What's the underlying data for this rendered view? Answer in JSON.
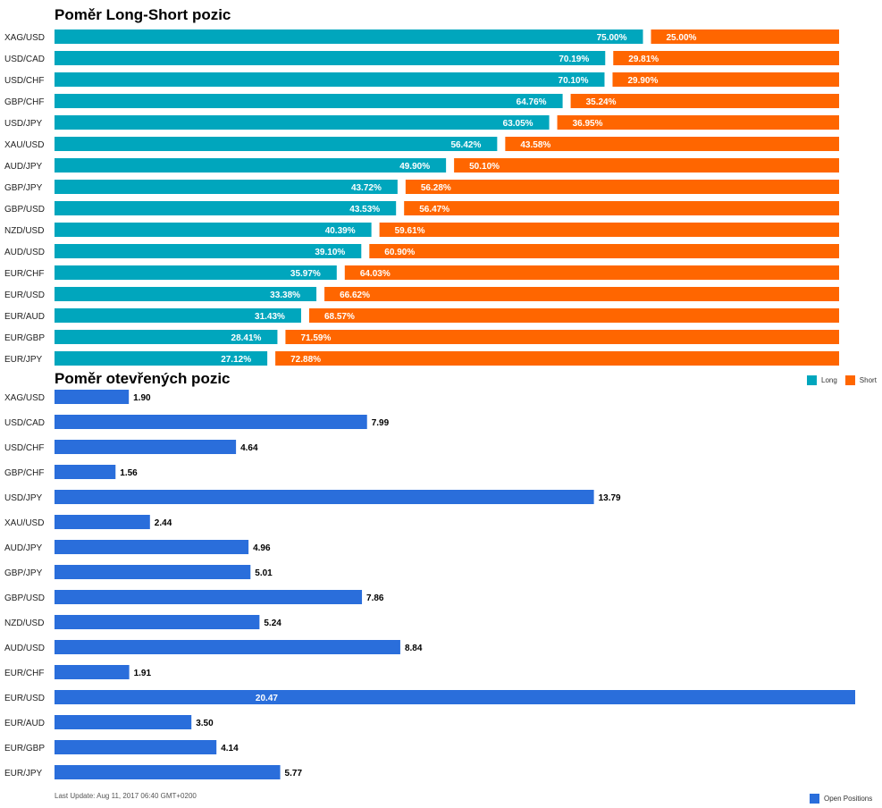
{
  "chart_data": [
    {
      "type": "bar",
      "stacked": true,
      "orientation": "horizontal",
      "title": "Poměr Long-Short pozic",
      "categories": [
        "XAG/USD",
        "USD/CAD",
        "USD/CHF",
        "GBP/CHF",
        "USD/JPY",
        "XAU/USD",
        "AUD/JPY",
        "GBP/JPY",
        "GBP/USD",
        "NZD/USD",
        "AUD/USD",
        "EUR/CHF",
        "EUR/USD",
        "EUR/AUD",
        "EUR/GBP",
        "EUR/JPY"
      ],
      "series": [
        {
          "name": "Long",
          "color": "#00a6bd",
          "values": [
            75.0,
            70.19,
            70.1,
            64.76,
            63.05,
            56.42,
            49.9,
            43.72,
            43.53,
            40.39,
            39.1,
            35.97,
            33.38,
            31.43,
            28.41,
            27.12
          ]
        },
        {
          "name": "Short",
          "color": "#ff6600",
          "values": [
            25.0,
            29.81,
            29.9,
            35.24,
            36.95,
            43.58,
            50.1,
            56.28,
            56.47,
            59.61,
            60.9,
            64.03,
            66.62,
            68.57,
            71.59,
            72.88
          ]
        }
      ],
      "value_suffix": "%",
      "xlim": [
        0,
        100
      ],
      "legend": {
        "position": "right",
        "labels": [
          "Long",
          "Short"
        ]
      }
    },
    {
      "type": "bar",
      "orientation": "horizontal",
      "title": "Poměr otevřených pozic",
      "categories": [
        "XAG/USD",
        "USD/CAD",
        "USD/CHF",
        "GBP/CHF",
        "USD/JPY",
        "XAU/USD",
        "AUD/JPY",
        "GBP/JPY",
        "GBP/USD",
        "NZD/USD",
        "AUD/USD",
        "EUR/CHF",
        "EUR/USD",
        "EUR/AUD",
        "EUR/GBP",
        "EUR/JPY"
      ],
      "series": [
        {
          "name": "Open Positions",
          "color": "#2a6edb",
          "values": [
            1.9,
            7.99,
            4.64,
            1.56,
            13.79,
            2.44,
            4.96,
            5.01,
            7.86,
            5.24,
            8.84,
            1.91,
            20.47,
            3.5,
            4.14,
            5.77
          ]
        }
      ],
      "xlim": [
        0,
        20.47
      ],
      "legend": {
        "position": "bottom-right",
        "labels": [
          "Open Positions"
        ]
      }
    }
  ],
  "footer": {
    "last_update": "Last Update: Aug 11, 2017 06:40 GMT+0200"
  }
}
